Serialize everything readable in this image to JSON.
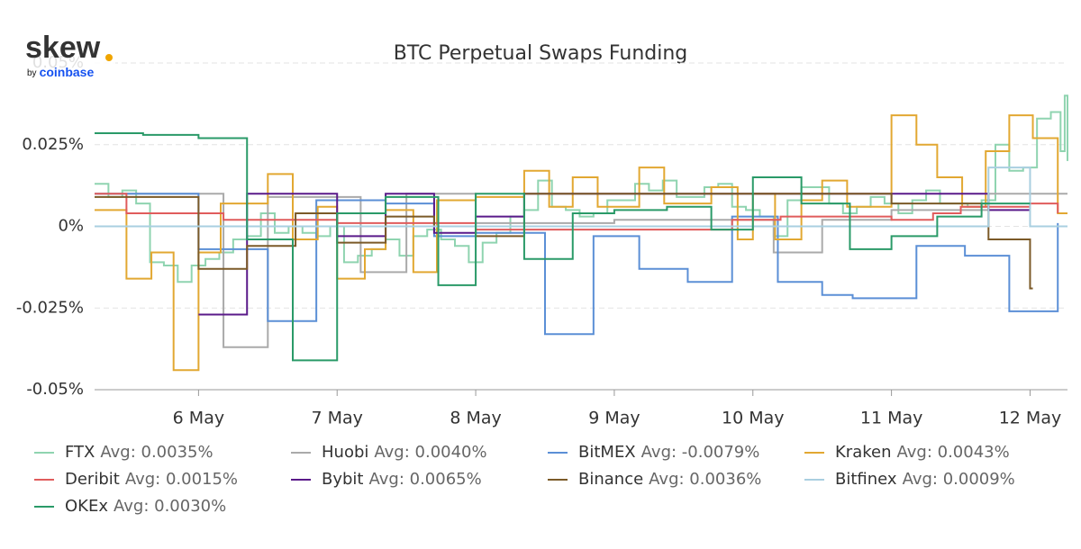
{
  "chart_data": {
    "type": "step",
    "title": "BTC Perpetual Swaps Funding",
    "logo": {
      "text": "skew",
      "by": "by",
      "brand": "coinbase"
    },
    "xlim": [
      5.25,
      12.27
    ],
    "xticks": [
      {
        "value": 6,
        "label": "6 May"
      },
      {
        "value": 7,
        "label": "7 May"
      },
      {
        "value": 8,
        "label": "8 May"
      },
      {
        "value": 9,
        "label": "9 May"
      },
      {
        "value": 10,
        "label": "10 May"
      },
      {
        "value": 11,
        "label": "11 May"
      },
      {
        "value": 12,
        "label": "12 May"
      }
    ],
    "ylim": [
      -0.05,
      0.05
    ],
    "yticks": [
      {
        "value": -0.05,
        "label": "-0.05%"
      },
      {
        "value": -0.025,
        "label": "-0.025%"
      },
      {
        "value": 0,
        "label": "0%"
      },
      {
        "value": 0.025,
        "label": "0.025%"
      },
      {
        "value": 0.05,
        "label": "0.05%"
      }
    ],
    "grid": true,
    "series": [
      {
        "name": "FTX",
        "avg_label": "Avg: 0.0035%",
        "color": "#8fd4b0",
        "x": [
          5.25,
          5.35,
          5.45,
          5.55,
          5.65,
          5.75,
          5.85,
          5.95,
          6.05,
          6.15,
          6.25,
          6.35,
          6.45,
          6.55,
          6.65,
          6.75,
          6.85,
          6.95,
          7.05,
          7.15,
          7.25,
          7.35,
          7.45,
          7.55,
          7.65,
          7.75,
          7.85,
          7.95,
          8.05,
          8.15,
          8.25,
          8.35,
          8.45,
          8.55,
          8.65,
          8.75,
          8.85,
          8.95,
          9.05,
          9.15,
          9.25,
          9.35,
          9.45,
          9.55,
          9.65,
          9.75,
          9.85,
          9.95,
          10.05,
          10.15,
          10.25,
          10.35,
          10.45,
          10.55,
          10.65,
          10.75,
          10.85,
          10.95,
          11.05,
          11.15,
          11.25,
          11.35,
          11.45,
          11.55,
          11.65,
          11.75,
          11.85,
          11.95,
          12.05,
          12.15,
          12.22,
          12.25,
          12.27
        ],
        "values": [
          0.013,
          0.009,
          0.011,
          0.007,
          -0.011,
          -0.012,
          -0.017,
          -0.012,
          -0.01,
          -0.008,
          -0.004,
          -0.003,
          0.004,
          -0.002,
          0,
          -0.002,
          -0.003,
          0,
          -0.011,
          -0.009,
          -0.007,
          -0.004,
          -0.009,
          -0.003,
          -0.001,
          -0.004,
          -0.006,
          -0.011,
          -0.005,
          -0.002,
          0.003,
          0.005,
          0.014,
          0.006,
          0.005,
          0.003,
          0.004,
          0.008,
          0.008,
          0.013,
          0.011,
          0.014,
          0.009,
          0.009,
          0.012,
          0.013,
          0.006,
          0.005,
          0.003,
          -0.003,
          0.008,
          0.012,
          0.012,
          0.007,
          0.004,
          0.006,
          0.009,
          0.007,
          0.004,
          0.008,
          0.011,
          0.007,
          0.007,
          0.006,
          0.008,
          0.025,
          0.017,
          0.018,
          0.033,
          0.035,
          0.023,
          0.04,
          0.02
        ]
      },
      {
        "name": "Huobi",
        "avg_label": "Avg: 0.0040%",
        "color": "#aaaaaa",
        "x": [
          5.25,
          6.18,
          6.5,
          7.17,
          7.5,
          8.0,
          9.0,
          10.15,
          10.5,
          11.0,
          11.7,
          12.27
        ],
        "values": [
          0.01,
          -0.037,
          0.009,
          -0.014,
          0.01,
          0.001,
          0.002,
          -0.008,
          0.002,
          0.005,
          0.01,
          0.01
        ]
      },
      {
        "name": "BitMEX",
        "avg_label": "Avg: -0.0079%",
        "color": "#5b8fd6",
        "x": [
          5.25,
          6.0,
          6.5,
          6.85,
          7.35,
          7.7,
          8.0,
          8.5,
          8.85,
          9.18,
          9.53,
          9.85,
          10.18,
          10.5,
          10.72,
          11.18,
          11.53,
          11.85,
          12.2
        ],
        "values": [
          0.01,
          -0.007,
          -0.029,
          0.008,
          0.007,
          -0.003,
          -0.002,
          -0.033,
          -0.003,
          -0.013,
          -0.017,
          0.003,
          -0.017,
          -0.021,
          -0.022,
          -0.006,
          -0.009,
          -0.026,
          0.001
        ]
      },
      {
        "name": "Kraken",
        "avg_label": "Avg: 0.0043%",
        "color": "#e2a832",
        "x": [
          5.25,
          5.48,
          5.66,
          5.82,
          6.0,
          6.16,
          6.5,
          6.68,
          6.86,
          7.0,
          7.2,
          7.35,
          7.55,
          7.72,
          8.0,
          8.35,
          8.53,
          8.7,
          8.88,
          9.18,
          9.36,
          9.7,
          9.89,
          10.0,
          10.16,
          10.35,
          10.5,
          10.68,
          11.0,
          11.18,
          11.33,
          11.51,
          11.68,
          11.85,
          12.02,
          12.2,
          12.27
        ],
        "values": [
          0.005,
          -0.016,
          -0.008,
          -0.044,
          -0.008,
          0.007,
          0.016,
          -0.004,
          0.006,
          -0.016,
          -0.007,
          0.005,
          -0.014,
          0.008,
          0.009,
          0.017,
          0.006,
          0.015,
          0.006,
          0.018,
          0.007,
          0.012,
          -0.004,
          0.01,
          -0.004,
          0.008,
          0.014,
          0.006,
          0.034,
          0.025,
          0.015,
          0.006,
          0.023,
          0.034,
          0.027,
          0.004,
          0.004
        ]
      },
      {
        "name": "Deribit",
        "avg_label": "Avg: 0.0015%",
        "color": "#e05c5c",
        "x": [
          5.25,
          5.48,
          6.18,
          7.0,
          8.0,
          8.5,
          9.85,
          10.2,
          11.0,
          11.3,
          11.5,
          12.0,
          12.2
        ],
        "values": [
          0.01,
          0.004,
          0.002,
          0.001,
          -0.001,
          -0.001,
          0.002,
          0.003,
          0.002,
          0.004,
          0.006,
          0.007,
          0.004
        ]
      },
      {
        "name": "Bybit",
        "avg_label": "Avg: 0.0065%",
        "color": "#5a1a8a",
        "x": [
          6.0,
          6.35,
          7.0,
          7.35,
          7.7,
          8.0,
          8.35,
          11.7,
          12.0
        ],
        "values": [
          -0.027,
          0.01,
          -0.003,
          0.01,
          -0.002,
          0.003,
          0.01,
          0.005,
          0.005
        ]
      },
      {
        "name": "Binance",
        "avg_label": "Avg: 0.0036%",
        "color": "#7b5a28",
        "x": [
          5.25,
          6.0,
          6.35,
          6.7,
          7.0,
          7.35,
          7.7,
          8.0,
          8.35,
          11.0,
          11.7,
          12.0,
          12.02
        ],
        "values": [
          0.009,
          -0.013,
          -0.006,
          0.004,
          -0.005,
          0.003,
          0,
          -0.003,
          0.01,
          0.007,
          -0.004,
          -0.019,
          -0.019
        ]
      },
      {
        "name": "Bitfinex",
        "avg_label": "Avg: 0.0009%",
        "color": "#a9cfe0",
        "x": [
          5.25,
          11.7,
          12.0,
          12.27
        ],
        "values": [
          0,
          0.018,
          0,
          0
        ]
      },
      {
        "name": "OKEx",
        "avg_label": "Avg: 0.0030%",
        "color": "#2a9a68",
        "x": [
          5.25,
          5.6,
          6.0,
          6.35,
          6.68,
          7.0,
          7.35,
          7.73,
          8.0,
          8.35,
          8.7,
          9.0,
          9.38,
          9.7,
          10.0,
          10.35,
          10.7,
          11.0,
          11.33,
          11.65,
          12.0
        ],
        "values": [
          0.0285,
          0.028,
          0.027,
          -0.004,
          -0.041,
          0.004,
          0.009,
          -0.018,
          0.01,
          -0.01,
          0.004,
          0.005,
          0.006,
          -0.001,
          0.015,
          0.007,
          -0.007,
          -0.003,
          0.003,
          0.007,
          0.007
        ]
      }
    ]
  }
}
